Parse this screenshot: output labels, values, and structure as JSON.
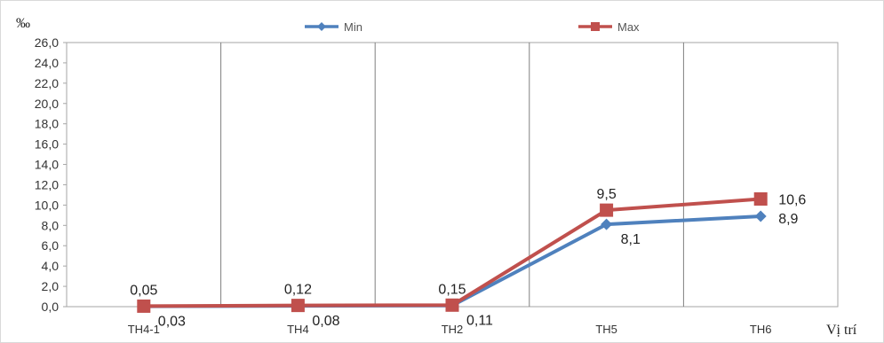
{
  "chart_data": {
    "type": "line",
    "ylabel": "‰",
    "xlabel": "Vị trí",
    "categories": [
      "TH4-1",
      "TH4",
      "TH2",
      "TH5",
      "TH6"
    ],
    "ylim": [
      0,
      26
    ],
    "yticks": [
      "0,0",
      "2,0",
      "4,0",
      "6,0",
      "8,0",
      "10,0",
      "12,0",
      "14,0",
      "16,0",
      "18,0",
      "20,0",
      "22,0",
      "24,0",
      "26,0"
    ],
    "grid": "vertical",
    "legend_position": "top",
    "series": [
      {
        "name": "Min",
        "color": "#4F81BD",
        "marker": "diamond",
        "values": [
          0.03,
          0.08,
          0.11,
          8.1,
          8.9
        ],
        "labels": [
          "0,03",
          "0,08",
          "0,11",
          "8,1",
          "8,9"
        ]
      },
      {
        "name": "Max",
        "color": "#C0504D",
        "marker": "square",
        "values": [
          0.05,
          0.12,
          0.15,
          9.5,
          10.6
        ],
        "labels": [
          "0,05",
          "0,12",
          "0,15",
          "9,5",
          "10,6"
        ]
      }
    ]
  }
}
